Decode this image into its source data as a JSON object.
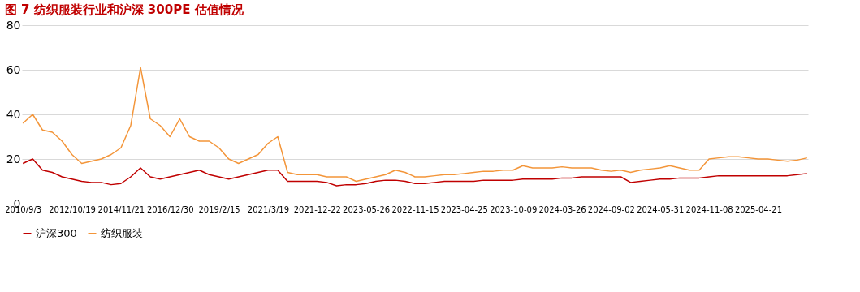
{
  "chart_data": {
    "type": "line",
    "title": "图 7 纺织服装行业和沪深 300PE 估值情况",
    "categories": [
      "2010/9/3",
      null,
      null,
      null,
      null,
      "2012/10/19",
      null,
      null,
      null,
      null,
      "2014/11/21",
      null,
      null,
      null,
      null,
      "2016/12/30",
      null,
      null,
      null,
      null,
      "2019/2/15",
      null,
      null,
      null,
      null,
      "2021/3/19",
      null,
      null,
      null,
      null,
      "2021-12-22",
      null,
      null,
      null,
      null,
      "2023-05-26",
      null,
      null,
      null,
      null,
      "2022-11-15",
      null,
      null,
      null,
      null,
      "2023-04-25",
      null,
      null,
      null,
      null,
      "2023-10-09",
      null,
      null,
      null,
      null,
      "2024-03-26",
      null,
      null,
      null,
      null,
      "2024-09-02",
      null,
      null,
      null,
      null,
      "2024-05-31",
      null,
      null,
      null,
      null,
      "2024-11-08",
      null,
      null,
      null,
      null,
      "2025-04-21",
      null,
      null,
      null,
      null,
      null
    ],
    "series": [
      {
        "name": "沪深300",
        "color": "#c00000",
        "values": [
          18,
          20,
          15,
          14,
          12,
          11,
          10,
          9.5,
          9.5,
          8.5,
          9,
          12,
          16,
          12,
          11,
          12,
          13,
          14,
          15,
          13,
          12,
          11,
          12,
          13,
          14,
          15,
          15,
          10,
          10,
          10,
          10,
          9.5,
          8,
          8.5,
          8.5,
          9,
          10,
          10.5,
          10.5,
          10,
          9,
          9,
          9.5,
          10,
          10,
          10,
          10,
          10.5,
          10.5,
          10.5,
          10.5,
          11,
          11,
          11,
          11,
          11.5,
          11.5,
          12,
          12,
          12,
          12,
          12,
          9.5,
          10,
          10.5,
          11,
          11,
          11.5,
          11.5,
          11.5,
          12,
          12.5,
          12.5,
          12.5,
          12.5,
          12.5,
          12.5,
          12.5,
          12.5,
          13,
          13.5
        ]
      },
      {
        "name": "纺织服装",
        "color": "#f39539",
        "values": [
          36,
          40,
          33,
          32,
          28,
          22,
          18,
          19,
          20,
          22,
          25,
          35,
          61,
          38,
          35,
          30,
          38,
          30,
          28,
          28,
          25,
          20,
          18,
          20,
          22,
          27,
          30,
          14,
          13,
          13,
          13,
          12,
          12,
          12,
          10,
          11,
          12,
          13,
          15,
          14,
          12,
          12,
          12.5,
          13,
          13,
          13.5,
          14,
          14.5,
          14.5,
          15,
          15,
          17,
          16,
          16,
          16,
          16.5,
          16,
          16,
          16,
          15,
          14.5,
          15,
          14,
          15,
          15.5,
          16,
          17,
          16,
          15,
          15,
          20,
          20.5,
          21,
          21,
          20.5,
          20,
          20,
          19.5,
          19,
          19.5,
          20.5
        ]
      }
    ],
    "ylim": [
      0,
      80
    ],
    "yticks": [
      0,
      20,
      40,
      60,
      80
    ],
    "grid": "y",
    "legend": "bottom",
    "line_style": "solid",
    "marker": "none"
  }
}
